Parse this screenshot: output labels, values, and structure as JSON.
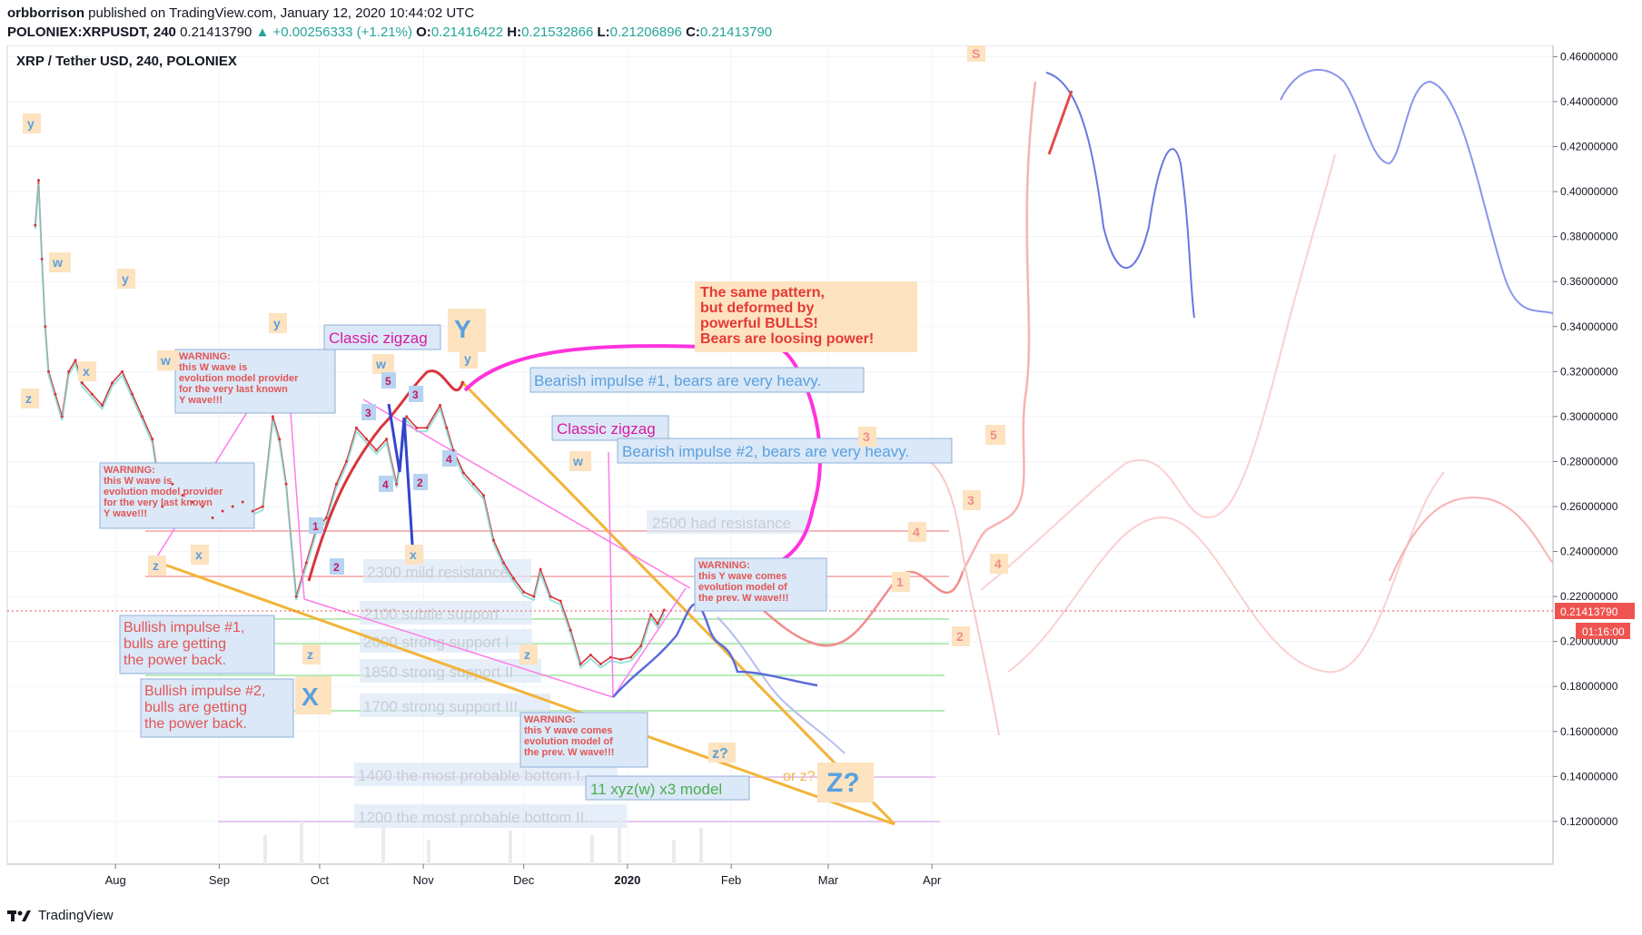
{
  "header": {
    "author": "orbborrison",
    "published": "published on TradingView.com, January 12, 2020 10:44:02 UTC",
    "symbol": "POLONIEX:XRPUSDT, 240",
    "last": "0.21413790",
    "change": "▲ +0.00256333 (+1.21%)",
    "o_label": "O:",
    "o": "0.21416422",
    "h_label": "H:",
    "h": "0.21532866",
    "l_label": "L:",
    "l": "0.21206896",
    "c_label": "C:",
    "c": "0.21413790"
  },
  "footer": {
    "brand": "TradingView"
  },
  "colors": {
    "up": "#26a69a",
    "down": "#ef5350",
    "price_line": "#ef5350",
    "orange": "#f4b63f",
    "magenta": "#ff33dd",
    "blue": "#5b6bdb",
    "label_bg": "#fde3c0",
    "box_bg": "#dbe8f7"
  },
  "chart_data": {
    "type": "line",
    "title": "XRP / Tether USD, 240, POLONIEX",
    "xlabel": "",
    "ylabel": "",
    "x_ticks": [
      "Aug",
      "Sep",
      "Oct",
      "Nov",
      "Dec",
      "2020",
      "Feb",
      "Mar",
      "Apr"
    ],
    "y_ticks": [
      "0.46000000",
      "0.44000000",
      "0.42000000",
      "0.40000000",
      "0.38000000",
      "0.36000000",
      "0.34000000",
      "0.32000000",
      "0.30000000",
      "0.28000000",
      "0.26000000",
      "0.24000000",
      "0.22000000",
      "0.20000000",
      "0.18000000",
      "0.16000000",
      "0.14000000",
      "0.12000000"
    ],
    "ylim": [
      0.101,
      0.465
    ],
    "price_tag": "0.21413790",
    "countdown": "01:16:00",
    "series": [
      {
        "values": [
          [
            "2019-07-08",
            0.385
          ],
          [
            "2019-07-09",
            0.405
          ],
          [
            "2019-07-10",
            0.37
          ],
          [
            "2019-07-11",
            0.34
          ],
          [
            "2019-07-12",
            0.32
          ],
          [
            "2019-07-14",
            0.31
          ],
          [
            "2019-07-16",
            0.3
          ],
          [
            "2019-07-18",
            0.32
          ],
          [
            "2019-07-20",
            0.325
          ],
          [
            "2019-07-22",
            0.315
          ],
          [
            "2019-07-25",
            0.31
          ],
          [
            "2019-07-28",
            0.305
          ],
          [
            "2019-07-31",
            0.315
          ],
          [
            "2019-08-03",
            0.32
          ],
          [
            "2019-08-06",
            0.31
          ],
          [
            "2019-08-09",
            0.3
          ],
          [
            "2019-08-12",
            0.29
          ],
          [
            "2019-08-15",
            0.26
          ],
          [
            "2019-08-18",
            0.27
          ],
          [
            "2019-08-21",
            0.265
          ],
          [
            "2019-08-24",
            0.262
          ],
          [
            "2019-08-27",
            0.26
          ],
          [
            "2019-08-30",
            0.255
          ],
          [
            "2019-09-02",
            0.258
          ],
          [
            "2019-09-05",
            0.26
          ],
          [
            "2019-09-08",
            0.262
          ],
          [
            "2019-09-11",
            0.258
          ],
          [
            "2019-09-14",
            0.26
          ],
          [
            "2019-09-17",
            0.3
          ],
          [
            "2019-09-19",
            0.29
          ],
          [
            "2019-09-21",
            0.27
          ],
          [
            "2019-09-24",
            0.22
          ],
          [
            "2019-09-27",
            0.235
          ],
          [
            "2019-09-30",
            0.25
          ],
          [
            "2019-10-03",
            0.255
          ],
          [
            "2019-10-06",
            0.27
          ],
          [
            "2019-10-09",
            0.28
          ],
          [
            "2019-10-12",
            0.295
          ],
          [
            "2019-10-15",
            0.29
          ],
          [
            "2019-10-18",
            0.285
          ],
          [
            "2019-10-21",
            0.29
          ],
          [
            "2019-10-24",
            0.27
          ],
          [
            "2019-10-27",
            0.3
          ],
          [
            "2019-10-30",
            0.295
          ],
          [
            "2019-11-02",
            0.295
          ],
          [
            "2019-11-06",
            0.305
          ],
          [
            "2019-11-08",
            0.295
          ],
          [
            "2019-11-10",
            0.285
          ],
          [
            "2019-11-13",
            0.275
          ],
          [
            "2019-11-16",
            0.27
          ],
          [
            "2019-11-19",
            0.265
          ],
          [
            "2019-11-22",
            0.245
          ],
          [
            "2019-11-25",
            0.235
          ],
          [
            "2019-11-28",
            0.228
          ],
          [
            "2019-12-01",
            0.222
          ],
          [
            "2019-12-04",
            0.22
          ],
          [
            "2019-12-06",
            0.232
          ],
          [
            "2019-12-09",
            0.22
          ],
          [
            "2019-12-12",
            0.218
          ],
          [
            "2019-12-15",
            0.205
          ],
          [
            "2019-12-18",
            0.19
          ],
          [
            "2019-12-21",
            0.194
          ],
          [
            "2019-12-24",
            0.19
          ],
          [
            "2019-12-27",
            0.193
          ],
          [
            "2019-12-30",
            0.192
          ],
          [
            "2020-01-02",
            0.193
          ],
          [
            "2020-01-05",
            0.198
          ],
          [
            "2020-01-08",
            0.212
          ],
          [
            "2020-01-10",
            0.208
          ],
          [
            "2020-01-12",
            0.214
          ]
        ]
      }
    ]
  },
  "levels": [
    {
      "label": "2500 had resistance"
    },
    {
      "label": "2300 mild resistance"
    },
    {
      "label": "2100 subtle support"
    },
    {
      "label": "2000 strong support I"
    },
    {
      "label": "1850 strong support II"
    },
    {
      "label": "1700 strong support III"
    },
    {
      "label": "1400 the most probable bottom I."
    },
    {
      "label": "1200 the most probable bottom II."
    }
  ],
  "annotations": {
    "warn1": [
      "WARNING:",
      "this W wave is",
      "evolution model provider",
      "for the very last known",
      "Y wave!!!"
    ],
    "warn2": [
      "WARNING:",
      "this W wave is",
      "evolution model provider",
      "for the very last known",
      "Y wave!!!"
    ],
    "warn3": [
      "WARNING:",
      "this Y wave comes",
      "evolution model of",
      "the prev. W wave!!!"
    ],
    "warn4": [
      "WARNING:",
      "this Y wave comes",
      "evolution model of",
      "the prev. W wave!!!"
    ],
    "classic1": "Classic zigzag",
    "classic2": "Classic zigzag",
    "bear1": "Bearish impulse #1, bears are very heavy.",
    "bear2": "Bearish impulse #2, bears are very heavy.",
    "bull1": [
      "Bullish impulse #1,",
      "bulls are getting",
      "the power back."
    ],
    "bull2": [
      "Bullish impulse #2,",
      "bulls are getting",
      "the power back."
    ],
    "same": [
      "The same pattern,",
      "but deformed by",
      "powerful BULLS!",
      "Bears are loosing power!"
    ],
    "xyz": "11 xyz(w) x3 model",
    "orz": "or z?",
    "zq": "z?",
    "Zq": "Z?",
    "Y": "Y",
    "X": "X"
  },
  "wave_labels": {
    "y": "y",
    "w": "w",
    "x": "x",
    "z": "z",
    "n1": "1",
    "n2": "2",
    "n3": "3",
    "n4": "4",
    "n5": "5",
    "S": "S"
  }
}
